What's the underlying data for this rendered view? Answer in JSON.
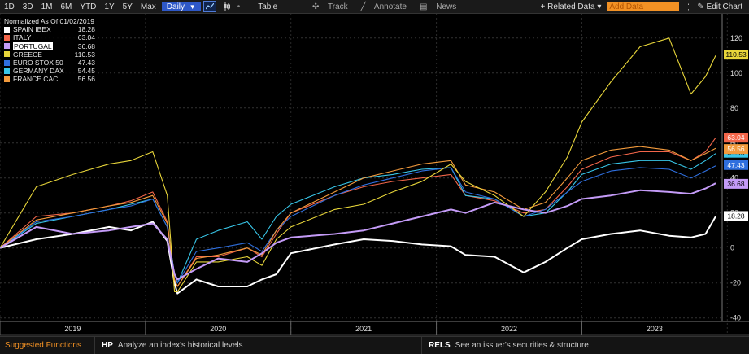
{
  "toolbar": {
    "ranges": [
      "1D",
      "3D",
      "1M",
      "6M",
      "YTD",
      "1Y",
      "5Y",
      "Max"
    ],
    "period": "Daily",
    "period_arrow": "▼",
    "table": "Table",
    "track": "Track",
    "annotate": "Annotate",
    "news": "News",
    "related": "Related Data",
    "related_arrow": "▾",
    "add_data_placeholder": "Add Data",
    "edit_chart": "Edit Chart",
    "more": "⋯"
  },
  "bottom": {
    "suggested": "Suggested Functions",
    "f1_code": "HP",
    "f1_desc": "Analyze an index's historical levels",
    "f2_code": "RELS",
    "f2_desc": "See an issuer's securities & structure"
  },
  "chart_data": {
    "type": "line",
    "title": "Normalized As Of 01/02/2019",
    "x_ticks": [
      "2019",
      "2020",
      "2021",
      "2022",
      "2023"
    ],
    "y_ticks": [
      -40,
      -20,
      0,
      20,
      40,
      60,
      80,
      100,
      120
    ],
    "ylim": [
      -42,
      132
    ],
    "xlim": [
      2019.0,
      2023.92
    ],
    "grid": true,
    "legend_position": "top-left",
    "series": [
      {
        "name": "SPAIN IBEX",
        "color": "#ffffff",
        "last": "18.28",
        "x": [
          2019.0,
          2019.25,
          2019.5,
          2019.75,
          2019.9,
          2020.05,
          2020.15,
          2020.2,
          2020.22,
          2020.35,
          2020.5,
          2020.7,
          2020.8,
          2020.9,
          2021.0,
          2021.3,
          2021.5,
          2021.7,
          2021.9,
          2022.1,
          2022.2,
          2022.4,
          2022.6,
          2022.75,
          2022.9,
          2023.0,
          2023.2,
          2023.4,
          2023.6,
          2023.75,
          2023.85,
          2023.92
        ],
        "y": [
          0,
          5,
          8,
          12,
          10,
          15,
          4,
          -20,
          -26,
          -18,
          -22,
          -22,
          -18,
          -15,
          -3,
          2,
          5,
          4,
          2,
          1,
          -4,
          -5,
          -14,
          -8,
          0,
          5,
          8,
          10,
          7,
          6,
          8,
          18
        ]
      },
      {
        "name": "ITALY",
        "color": "#f3664a",
        "last": "63.04",
        "x": [
          2019.0,
          2019.25,
          2019.5,
          2019.75,
          2019.9,
          2020.05,
          2020.15,
          2020.2,
          2020.22,
          2020.35,
          2020.5,
          2020.7,
          2020.8,
          2020.9,
          2021.0,
          2021.3,
          2021.5,
          2021.7,
          2021.9,
          2022.1,
          2022.2,
          2022.4,
          2022.6,
          2022.75,
          2022.9,
          2023.0,
          2023.2,
          2023.4,
          2023.6,
          2023.75,
          2023.85,
          2023.92
        ],
        "y": [
          0,
          18,
          20,
          24,
          27,
          32,
          15,
          -18,
          -22,
          -5,
          -5,
          0,
          -5,
          8,
          20,
          30,
          35,
          38,
          40,
          42,
          30,
          27,
          20,
          22,
          35,
          45,
          52,
          55,
          55,
          50,
          55,
          63
        ]
      },
      {
        "name": "PORTUGAL",
        "color": "#c49bf7",
        "last": "36.68",
        "x": [
          2019.0,
          2019.25,
          2019.5,
          2019.75,
          2019.9,
          2020.05,
          2020.15,
          2020.2,
          2020.22,
          2020.35,
          2020.5,
          2020.7,
          2020.8,
          2020.9,
          2021.0,
          2021.3,
          2021.5,
          2021.7,
          2021.9,
          2022.1,
          2022.2,
          2022.4,
          2022.6,
          2022.75,
          2022.9,
          2023.0,
          2023.2,
          2023.4,
          2023.6,
          2023.75,
          2023.85,
          2023.92
        ],
        "y": [
          0,
          12,
          8,
          10,
          12,
          14,
          5,
          -15,
          -18,
          -12,
          -6,
          -8,
          -3,
          3,
          6,
          8,
          10,
          14,
          18,
          22,
          20,
          26,
          22,
          20,
          24,
          28,
          30,
          33,
          32,
          31,
          34,
          37
        ]
      },
      {
        "name": "GREECE",
        "color": "#e8d63a",
        "last": "110.53",
        "x": [
          2019.0,
          2019.25,
          2019.5,
          2019.75,
          2019.9,
          2020.05,
          2020.15,
          2020.2,
          2020.22,
          2020.35,
          2020.5,
          2020.7,
          2020.8,
          2020.9,
          2021.0,
          2021.3,
          2021.5,
          2021.7,
          2021.9,
          2022.1,
          2022.2,
          2022.4,
          2022.6,
          2022.75,
          2022.9,
          2023.0,
          2023.2,
          2023.4,
          2023.6,
          2023.75,
          2023.85,
          2023.92
        ],
        "y": [
          0,
          35,
          42,
          48,
          50,
          55,
          30,
          -25,
          -25,
          -8,
          -8,
          -5,
          -10,
          5,
          12,
          22,
          25,
          32,
          38,
          48,
          38,
          30,
          18,
          32,
          52,
          72,
          95,
          115,
          120,
          88,
          98,
          110
        ]
      },
      {
        "name": "EURO STOX 50",
        "color": "#2f6fde",
        "last": "47.43",
        "x": [
          2019.0,
          2019.25,
          2019.5,
          2019.75,
          2019.9,
          2020.05,
          2020.15,
          2020.2,
          2020.22,
          2020.35,
          2020.5,
          2020.7,
          2020.8,
          2020.9,
          2021.0,
          2021.3,
          2021.5,
          2021.7,
          2021.9,
          2022.1,
          2022.2,
          2022.4,
          2022.6,
          2022.75,
          2022.9,
          2023.0,
          2023.2,
          2023.4,
          2023.6,
          2023.75,
          2023.85,
          2023.92
        ],
        "y": [
          0,
          15,
          18,
          22,
          24,
          28,
          12,
          -15,
          -20,
          -2,
          0,
          3,
          -2,
          10,
          18,
          30,
          36,
          40,
          44,
          46,
          32,
          28,
          18,
          22,
          32,
          38,
          44,
          46,
          45,
          40,
          44,
          47
        ]
      },
      {
        "name": "GERMANY DAX",
        "color": "#38c6e8",
        "last": "54.45",
        "x": [
          2019.0,
          2019.25,
          2019.5,
          2019.75,
          2019.9,
          2020.05,
          2020.15,
          2020.2,
          2020.22,
          2020.35,
          2020.5,
          2020.7,
          2020.8,
          2020.9,
          2021.0,
          2021.3,
          2021.5,
          2021.7,
          2021.9,
          2022.1,
          2022.2,
          2022.4,
          2022.6,
          2022.75,
          2022.9,
          2023.0,
          2023.2,
          2023.4,
          2023.6,
          2023.75,
          2023.85,
          2023.92
        ],
        "y": [
          0,
          14,
          18,
          22,
          25,
          28,
          12,
          -15,
          -20,
          5,
          10,
          15,
          5,
          18,
          25,
          35,
          40,
          42,
          45,
          46,
          30,
          28,
          18,
          20,
          32,
          42,
          48,
          50,
          50,
          45,
          50,
          54
        ]
      },
      {
        "name": "FRANCE CAC",
        "color": "#f29a3c",
        "last": "56.56",
        "x": [
          2019.0,
          2019.25,
          2019.5,
          2019.75,
          2019.9,
          2020.05,
          2020.15,
          2020.2,
          2020.22,
          2020.35,
          2020.5,
          2020.7,
          2020.8,
          2020.9,
          2021.0,
          2021.3,
          2021.5,
          2021.7,
          2021.9,
          2022.1,
          2022.2,
          2022.4,
          2022.6,
          2022.75,
          2022.9,
          2023.0,
          2023.2,
          2023.4,
          2023.6,
          2023.75,
          2023.85,
          2023.92
        ],
        "y": [
          0,
          16,
          20,
          24,
          26,
          30,
          14,
          -18,
          -22,
          -6,
          -4,
          0,
          -4,
          10,
          20,
          32,
          40,
          44,
          48,
          50,
          36,
          32,
          22,
          26,
          40,
          50,
          56,
          58,
          56,
          50,
          54,
          57
        ]
      }
    ]
  }
}
